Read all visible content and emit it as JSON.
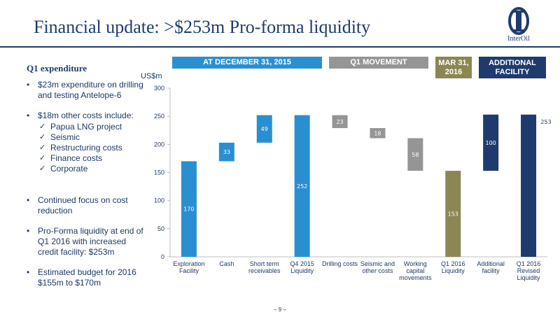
{
  "slide": {
    "title": "Financial update: >$253m Pro-forma liquidity",
    "logo_text": "InterOil",
    "page_number": "– 9 –"
  },
  "left_panel": {
    "heading": "Q1 expenditure",
    "bullet_1": "$23m expenditure on drilling and testing Antelope-6",
    "bullet_2": "$18m other costs include:",
    "sub_items": [
      "Papua LNG project",
      "Seismic",
      "Restructuring costs",
      "Finance costs",
      "Corporate"
    ],
    "bullet_3": "Continued focus on cost reduction",
    "bullet_4": "Pro-Forma liquidity at end of Q1 2016 with increased credit facility: $253m",
    "bullet_5": "Estimated budget for 2016 $155m to $170m",
    "bullet_symbol": "•",
    "check_symbol": "✓"
  },
  "headers": {
    "dec": "AT DECEMBER 31, 2015",
    "q1": "Q1 MOVEMENT",
    "mar_line1": "MAR 31,",
    "mar_line2": "2016",
    "add_line1": "ADDITIONAL",
    "add_line2": "FACILITY"
  },
  "colors": {
    "blue": "#2a8fd1",
    "grey": "#959595",
    "olive": "#8c8654",
    "navy": "#1f3b6e"
  },
  "chart_data": {
    "type": "bar",
    "subtype": "waterfall",
    "ylabel": "US$m",
    "ylim": [
      0,
      300
    ],
    "yticks": [
      0,
      50,
      100,
      150,
      200,
      250,
      300
    ],
    "grid": false,
    "bars": [
      {
        "label": [
          "Exploration",
          "Facility"
        ],
        "base": 0,
        "value": 170,
        "color": "#2a8fd1",
        "label_color": "#ffffff"
      },
      {
        "label": [
          "Cash"
        ],
        "base": 170,
        "value": 33,
        "color": "#2a8fd1",
        "label_color": "#ffffff"
      },
      {
        "label": [
          "Short term",
          "receivables"
        ],
        "base": 203,
        "value": 49,
        "color": "#2a8fd1",
        "label_color": "#ffffff"
      },
      {
        "label": [
          "Q4 2015",
          "Liquidity"
        ],
        "base": 0,
        "value": 252,
        "color": "#2a8fd1",
        "label_color": "#ffffff"
      },
      {
        "label": [
          "Drilling costs"
        ],
        "base": 229,
        "value": 23,
        "color": "#959595",
        "label_color": "#ffffff"
      },
      {
        "label": [
          "Seismic and",
          "other costs"
        ],
        "base": 211,
        "value": 18,
        "color": "#959595",
        "label_color": "#ffffff"
      },
      {
        "label": [
          "Working",
          "capital",
          "movements"
        ],
        "base": 153,
        "value": 58,
        "color": "#959595",
        "label_color": "#ffffff"
      },
      {
        "label": [
          "Q1 2016",
          "Liquidity"
        ],
        "base": 0,
        "value": 153,
        "color": "#8c8654",
        "label_color": "#ffffff"
      },
      {
        "label": [
          "Additional",
          "facility"
        ],
        "base": 153,
        "value": 100,
        "color": "#1f3b6e",
        "label_color": "#ffffff"
      },
      {
        "label": [
          "Q1 2016",
          "Revised",
          "Liquidity"
        ],
        "base": 0,
        "value": 253,
        "color": "#1f3b6e",
        "label_color": "#ffffff",
        "label_outside": true
      }
    ]
  }
}
